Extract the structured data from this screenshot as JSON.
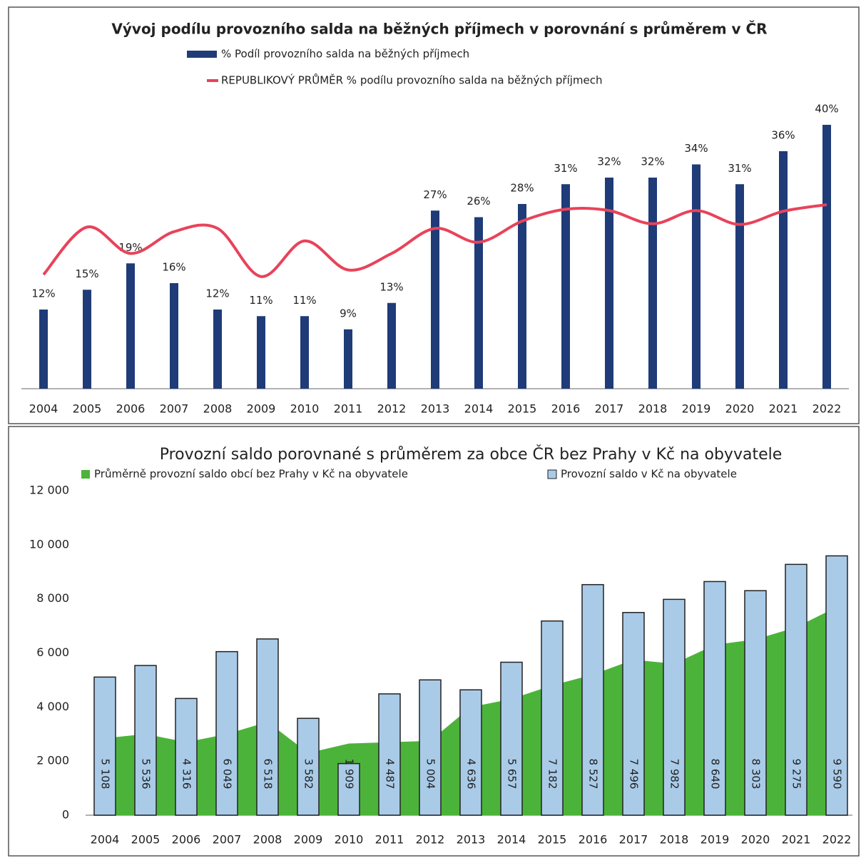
{
  "chart_data": [
    {
      "type": "bar",
      "title": "Vývoj podílu provozního salda na běžných příjmech v porovnání s průměrem v ČR",
      "categories": [
        "2004",
        "2005",
        "2006",
        "2007",
        "2008",
        "2009",
        "2010",
        "2011",
        "2012",
        "2013",
        "2014",
        "2015",
        "2016",
        "2017",
        "2018",
        "2019",
        "2020",
        "2021",
        "2022"
      ],
      "series": [
        {
          "name": "% Podíl provozního salda na běžných příjmech",
          "type": "bar",
          "color": "#1f3b78",
          "values": [
            12,
            15,
            19,
            16,
            12,
            11,
            11,
            9,
            13,
            27,
            26,
            28,
            31,
            32,
            32,
            34,
            31,
            36,
            40
          ],
          "value_labels": [
            "12%",
            "15%",
            "19%",
            "16%",
            "12%",
            "11%",
            "11%",
            "9%",
            "13%",
            "27%",
            "26%",
            "28%",
            "31%",
            "32%",
            "32%",
            "34%",
            "31%",
            "36%",
            "40%"
          ]
        },
        {
          "name": "REPUBLIKOVÝ PRŮMĚR % podílu provozního salda na běžných příjmech",
          "type": "line",
          "color": "#e8435a",
          "values": [
            17.3,
            24.5,
            20.5,
            23.8,
            24.3,
            17,
            22.4,
            18,
            20.5,
            24.3,
            22.2,
            25.4,
            27.2,
            27,
            25,
            27,
            24.9,
            26.9,
            27.9
          ]
        }
      ]
    },
    {
      "type": "bar",
      "title": "Provozní saldo porovnané s průměrem za obce ČR bez Prahy v Kč na obyvatele",
      "categories": [
        "2004",
        "2005",
        "2006",
        "2007",
        "2008",
        "2009",
        "2010",
        "2011",
        "2012",
        "2013",
        "2014",
        "2015",
        "2016",
        "2017",
        "2018",
        "2019",
        "2020",
        "2021",
        "2022"
      ],
      "ylim": [
        0,
        12000
      ],
      "yticks": [
        0,
        {
          "value": 2000,
          "label": "2 000"
        },
        {
          "value": 4000,
          "label": "4 000"
        },
        {
          "value": 6000,
          "label": "6 000"
        },
        {
          "value": 8000,
          "label": "8 000"
        },
        {
          "value": 10000,
          "label": "10 000"
        },
        {
          "value": 12000,
          "label": "12 000"
        }
      ],
      "series": [
        {
          "name": "Průměrně provozní saldo obcí bez Prahy v Kč na obyvatele",
          "type": "area",
          "color": "#4cb33a",
          "values": [
            2850,
            3000,
            2700,
            3000,
            3450,
            2300,
            2650,
            2700,
            2750,
            4000,
            4300,
            4800,
            5200,
            5750,
            5600,
            6300,
            6500,
            6950,
            7700
          ]
        },
        {
          "name": "Provozní saldo v Kč na obyvatele",
          "type": "bar",
          "color": "#a9cbe8",
          "values": [
            5108,
            5536,
            4316,
            6049,
            6518,
            3582,
            1909,
            4487,
            5004,
            4636,
            5657,
            7182,
            8527,
            7496,
            7982,
            8640,
            8303,
            9275,
            9590
          ],
          "value_labels": [
            "5 108",
            "5 536",
            "4 316",
            "6 049",
            "6 518",
            "3 582",
            "1 909",
            "4 487",
            "5 004",
            "4 636",
            "5 657",
            "7 182",
            "8 527",
            "7 496",
            "7 982",
            "8 640",
            "8 303",
            "9 275",
            "9 590"
          ]
        }
      ]
    }
  ]
}
